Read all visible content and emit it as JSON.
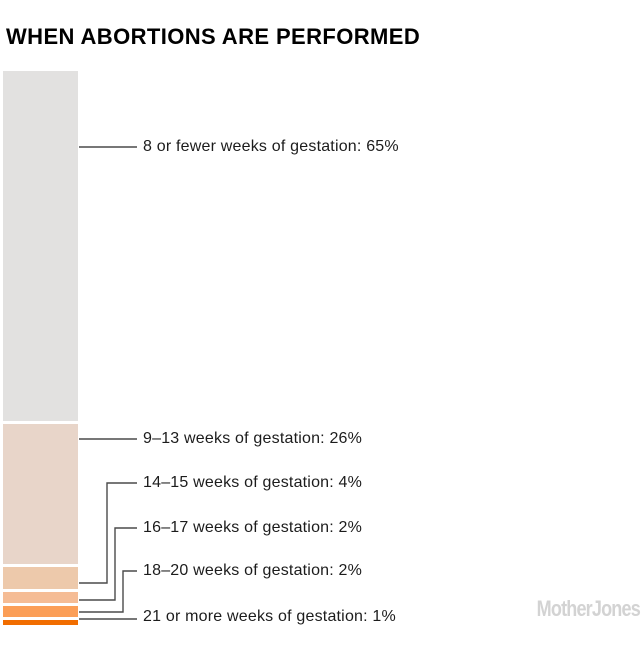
{
  "chart_data": {
    "type": "bar",
    "subtype": "single-stacked-vertical-bar",
    "title": "WHEN ABORTIONS ARE PERFORMED",
    "unit": "%",
    "total": 100,
    "grid": false,
    "legend_position": "right-callout-labels",
    "segments": [
      {
        "label": "8 or fewer weeks of gestation",
        "value": 65,
        "color": "#e2e1e0"
      },
      {
        "label": "9–13 weeks of gestation",
        "value": 26,
        "color": "#e8d5c9"
      },
      {
        "label": "14–15 weeks of gestation",
        "value": 4,
        "color": "#edc9ab"
      },
      {
        "label": "16–17 weeks of gestation",
        "value": 2,
        "color": "#f5bc95"
      },
      {
        "label": "18–20 weeks of gestation",
        "value": 2,
        "color": "#fb9e57"
      },
      {
        "label": "21 or more weeks of gestation",
        "value": 1,
        "color": "#f16d00"
      }
    ],
    "label_separator": ": ",
    "connector_color": "#4a4a4a"
  },
  "footer": {
    "logo": "MotherJones"
  }
}
